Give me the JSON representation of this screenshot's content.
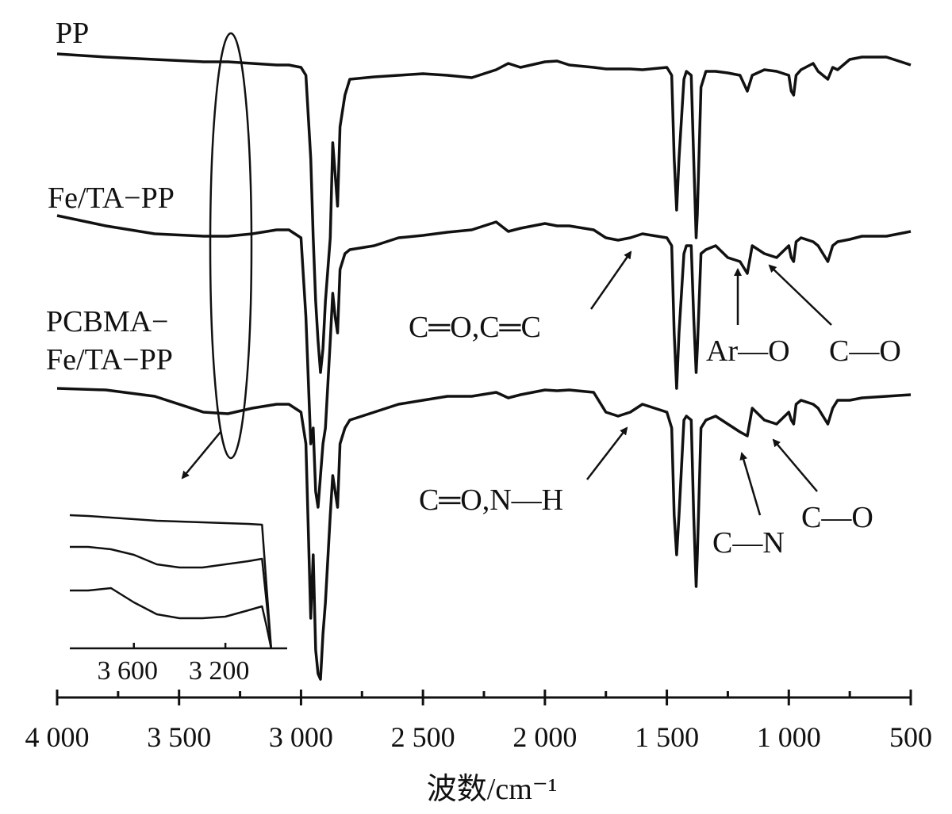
{
  "chart_data": [
    {
      "type": "line",
      "x_label": "波数/cm⁻¹",
      "x": [
        4000,
        3800,
        3600,
        3400,
        3300,
        3200,
        3100,
        3050,
        3000,
        2980,
        2960,
        2950,
        2940,
        2930,
        2920,
        2910,
        2900,
        2880,
        2870,
        2860,
        2850,
        2840,
        2820,
        2800,
        2700,
        2600,
        2500,
        2400,
        2300,
        2200,
        2150,
        2100,
        2000,
        1950,
        1900,
        1800,
        1750,
        1700,
        1650,
        1600,
        1500,
        1480,
        1470,
        1460,
        1450,
        1430,
        1420,
        1400,
        1390,
        1380,
        1375,
        1360,
        1340,
        1300,
        1250,
        1200,
        1170,
        1150,
        1100,
        1050,
        1000,
        990,
        980,
        970,
        950,
        900,
        880,
        840,
        820,
        800,
        750,
        700,
        600,
        500
      ],
      "series": [
        {
          "name": "PP",
          "color": "#111111",
          "values": [
            81.2,
            80.8,
            80.5,
            80.2,
            80.2,
            80,
            79.8,
            79.8,
            79.5,
            78.5,
            68,
            58,
            50,
            45,
            41,
            44,
            50,
            58,
            70,
            66,
            62,
            72,
            76,
            78,
            78.3,
            78.5,
            78.7,
            78.5,
            78.2,
            79.2,
            80,
            79.5,
            80.2,
            80.3,
            79.8,
            79.5,
            79.3,
            79.3,
            79.3,
            79.2,
            79.5,
            78.5,
            68,
            61.5,
            68,
            78,
            79,
            78.5,
            68,
            58,
            61,
            77,
            79,
            79,
            78.8,
            78.5,
            76.5,
            78.5,
            79.2,
            79,
            78.5,
            76.5,
            76,
            78.5,
            79.2,
            80,
            79,
            78,
            79.5,
            79.2,
            80.5,
            80.8,
            80.8,
            79.8
          ]
        },
        {
          "name": "Fe/TA−PP",
          "color": "#111111",
          "values": [
            60.8,
            59.5,
            58.5,
            58.2,
            58.2,
            58.5,
            59,
            59,
            58,
            48,
            32,
            34,
            26,
            24,
            28,
            32,
            34,
            45,
            51,
            48,
            46,
            54,
            56,
            56.5,
            57,
            58,
            58.3,
            58.7,
            59,
            60,
            58.8,
            59.2,
            59.8,
            59.5,
            59.5,
            59,
            58,
            57.7,
            58,
            58.5,
            58,
            57,
            46,
            39,
            46,
            56,
            57,
            57,
            48,
            41,
            44,
            56,
            56.5,
            57,
            55.5,
            55,
            53.5,
            57,
            56,
            55.5,
            57,
            55.5,
            55,
            57.5,
            58,
            57.5,
            57,
            55,
            57,
            57.5,
            57.8,
            58.2,
            58.2,
            58.8
          ]
        },
        {
          "name": "PCBMA−\nFe/TA−PP",
          "color": "#111111",
          "values": [
            39,
            38.8,
            38,
            36,
            35.8,
            36.5,
            37,
            37,
            36,
            32,
            10,
            18,
            6,
            3,
            2.3,
            8,
            12,
            23,
            28,
            26,
            24,
            32,
            34,
            35,
            36,
            37,
            37.5,
            38,
            38,
            38.5,
            37.8,
            38.2,
            38.8,
            38.7,
            38.8,
            38.5,
            36,
            35.5,
            36,
            37,
            36,
            34,
            23,
            18,
            23,
            35,
            35.5,
            35,
            23,
            14,
            18,
            34,
            35,
            35.5,
            34.5,
            33.5,
            33,
            36.5,
            35,
            34.5,
            36,
            35,
            34.5,
            37,
            37.5,
            37,
            36.5,
            34.5,
            36.5,
            37.5,
            37.5,
            37.8,
            38,
            38.2
          ]
        }
      ],
      "xlim": [
        4000,
        500
      ],
      "xticks": [
        {
          "value": 4000,
          "label": "4 000"
        },
        {
          "value": 3500,
          "label": "3 500"
        },
        {
          "value": 3000,
          "label": "3 000"
        },
        {
          "value": 2500,
          "label": "2 500"
        },
        {
          "value": 2000,
          "label": "2 000"
        },
        {
          "value": 1500,
          "label": "1 500"
        },
        {
          "value": 1000,
          "label": "1 000"
        },
        500
      ],
      "xminorticks": [
        3750,
        3250,
        2750,
        2250,
        1750,
        1250,
        750
      ],
      "ylim": [
        0,
        84
      ],
      "annotations": [
        "C═O,C═C",
        "Ar—O",
        "C—O",
        "C═O,N—H",
        "C—N",
        "C—O"
      ]
    },
    {
      "type": "line",
      "x": [
        3880,
        3800,
        3700,
        3600,
        3500,
        3400,
        3300,
        3200,
        3100,
        3040,
        3020,
        3000
      ],
      "series": [
        {
          "color": "#111111",
          "values": [
            16.8,
            16.7,
            16.5,
            16.3,
            16.1,
            16,
            15.9,
            15.8,
            15.7,
            15.6,
            7.8,
            0
          ]
        },
        {
          "color": "#111111",
          "values": [
            12.8,
            12.8,
            12.5,
            11.8,
            10.6,
            10.2,
            10.2,
            10.6,
            11,
            11.3,
            5.8,
            0
          ]
        },
        {
          "color": "#111111",
          "values": [
            7.3,
            7.3,
            7.6,
            5.8,
            4.3,
            3.8,
            3.8,
            4,
            4.8,
            5.3,
            2.8,
            0
          ]
        }
      ],
      "xlim": [
        3880,
        2930
      ],
      "xticks": [
        {
          "value": 3600,
          "label": "3 600"
        },
        {
          "value": 3200,
          "label": "3 200"
        }
      ],
      "ylim": [
        0,
        20
      ]
    }
  ]
}
